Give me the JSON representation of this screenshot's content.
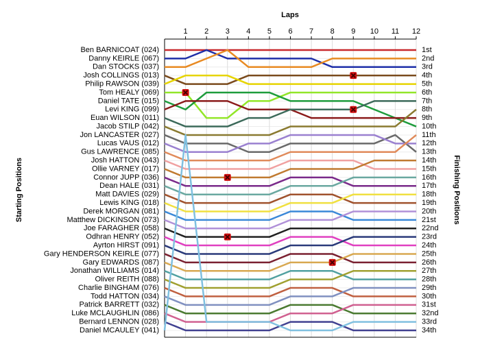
{
  "chart_data": {
    "type": "lap",
    "title": "Laps",
    "y_label": "Starting Positions",
    "y2_label": "Finishing Positions",
    "x": [
      0,
      1,
      2,
      3,
      4,
      5,
      6,
      7,
      8,
      9,
      10,
      11,
      12
    ],
    "xlim": [
      0,
      12
    ],
    "xticks": [
      1,
      2,
      3,
      4,
      5,
      6,
      7,
      8,
      9,
      10,
      11,
      12
    ],
    "ylim": [
      1,
      34
    ],
    "yticks": [
      {
        "value": 1,
        "label": "1st"
      },
      {
        "value": 2,
        "label": "2nd"
      },
      {
        "value": 3,
        "label": "3rd"
      },
      {
        "value": 4,
        "label": "4th"
      },
      {
        "value": 5,
        "label": "5th"
      },
      {
        "value": 6,
        "label": "6th"
      },
      {
        "value": 7,
        "label": "7th"
      },
      {
        "value": 8,
        "label": "8th"
      },
      {
        "value": 9,
        "label": "9th"
      },
      {
        "value": 10,
        "label": "10th"
      },
      {
        "value": 11,
        "label": "11th"
      },
      {
        "value": 12,
        "label": "12th"
      },
      {
        "value": 13,
        "label": "13th"
      },
      {
        "value": 14,
        "label": "14th"
      },
      {
        "value": 15,
        "label": "15th"
      },
      {
        "value": 16,
        "label": "16th"
      },
      {
        "value": 17,
        "label": "17th"
      },
      {
        "value": 18,
        "label": "18th"
      },
      {
        "value": 19,
        "label": "19th"
      },
      {
        "value": 20,
        "label": "20th"
      },
      {
        "value": 21,
        "label": "21st"
      },
      {
        "value": 22,
        "label": "22nd"
      },
      {
        "value": 23,
        "label": "23rd"
      },
      {
        "value": 24,
        "label": "24th"
      },
      {
        "value": 25,
        "label": "25th"
      },
      {
        "value": 26,
        "label": "26th"
      },
      {
        "value": 27,
        "label": "27th"
      },
      {
        "value": 28,
        "label": "28th"
      },
      {
        "value": 29,
        "label": "29th"
      },
      {
        "value": 30,
        "label": "30th"
      },
      {
        "value": 31,
        "label": "31st"
      },
      {
        "value": 32,
        "label": "32nd"
      },
      {
        "value": 33,
        "label": "33rd"
      },
      {
        "value": 34,
        "label": "34th"
      }
    ],
    "grid": true,
    "series": [
      {
        "name": "Ben BARNICOAT (024)",
        "color": "#c8282d",
        "values": [
          1,
          1,
          1,
          1,
          1,
          1,
          1,
          1,
          1,
          1,
          1,
          1,
          1
        ]
      },
      {
        "name": "Danny KEIRLE (067)",
        "color": "#1e2fa8",
        "values": [
          2,
          2,
          1,
          2,
          2,
          2,
          2,
          2,
          3,
          3,
          3,
          3,
          3
        ]
      },
      {
        "name": "Dan STOCKS (037)",
        "color": "#e88a22",
        "values": [
          3,
          3,
          2,
          1,
          3,
          3,
          3,
          3,
          2,
          2,
          2,
          2,
          2
        ]
      },
      {
        "name": "Josh COLLINGS (013)",
        "color": "#7a4a1c",
        "values": [
          4,
          5,
          5,
          5,
          4,
          4,
          4,
          4,
          4,
          4,
          4,
          4,
          4
        ]
      },
      {
        "name": "Philip RAWSON (039)",
        "color": "#e6d400",
        "values": [
          5,
          4,
          4,
          4,
          5,
          5,
          5,
          5,
          5,
          5,
          5,
          5,
          5
        ]
      },
      {
        "name": "Tom HEALY (069)",
        "color": "#92e628",
        "values": [
          6,
          6,
          9,
          9,
          7,
          7,
          6,
          6,
          6,
          6,
          6,
          6,
          6
        ]
      },
      {
        "name": "Daniel TATE (015)",
        "color": "#1e9c3c",
        "values": [
          7,
          8,
          6,
          6,
          6,
          6,
          7,
          7,
          7,
          7,
          8,
          9,
          10
        ]
      },
      {
        "name": "Levi KING (099)",
        "color": "#8a1a1a",
        "values": [
          8,
          7,
          7,
          7,
          8,
          8,
          8,
          9,
          9,
          9,
          9,
          9,
          9
        ]
      },
      {
        "name": "Euan WILSON (011)",
        "color": "#3c6a5a",
        "values": [
          9,
          10,
          10,
          10,
          9,
          9,
          8,
          8,
          8,
          8,
          7,
          7,
          7
        ]
      },
      {
        "name": "Jacob STILP (042)",
        "color": "#8a7a30",
        "values": [
          10,
          11,
          11,
          11,
          11,
          11,
          10,
          10,
          10,
          10,
          10,
          10,
          8
        ]
      },
      {
        "name": "Jon LANCASTER (027)",
        "color": "#6a6a6a",
        "values": [
          11,
          12,
          12,
          12,
          13,
          13,
          12,
          12,
          12,
          12,
          12,
          11,
          13
        ]
      },
      {
        "name": "Lucas VAUS (012)",
        "color": "#9a80d0",
        "values": [
          12,
          13,
          13,
          13,
          12,
          12,
          11,
          11,
          11,
          11,
          11,
          12,
          12
        ]
      },
      {
        "name": "Gus LAWRENCE (085)",
        "color": "#e08a5a",
        "values": [
          13,
          14,
          14,
          14,
          14,
          14,
          13,
          13,
          13,
          13,
          13,
          13,
          11
        ]
      },
      {
        "name": "Josh HATTON (043)",
        "color": "#f0a0a0",
        "values": [
          14,
          15,
          15,
          15,
          15,
          15,
          14,
          14,
          14,
          14,
          15,
          15,
          15
        ]
      },
      {
        "name": "Ollie VARNEY (017)",
        "color": "#c07a30",
        "values": [
          15,
          16,
          16,
          16,
          16,
          16,
          15,
          15,
          15,
          15,
          14,
          14,
          14
        ]
      },
      {
        "name": "Connor JUPP (036)",
        "color": "#7a2a8a",
        "values": [
          16,
          17,
          17,
          17,
          17,
          17,
          16,
          16,
          16,
          17,
          17,
          17,
          17
        ]
      },
      {
        "name": "Dean HALE (031)",
        "color": "#6aa8a0",
        "values": [
          17,
          18,
          18,
          18,
          18,
          18,
          17,
          17,
          17,
          16,
          16,
          16,
          16
        ]
      },
      {
        "name": "Matt DAVIES (029)",
        "color": "#a0522d",
        "values": [
          18,
          19,
          19,
          19,
          19,
          19,
          18,
          18,
          18,
          19,
          19,
          19,
          19
        ]
      },
      {
        "name": "Lewis KING (018)",
        "color": "#f0e040",
        "values": [
          19,
          20,
          20,
          20,
          20,
          20,
          19,
          19,
          19,
          18,
          18,
          18,
          18
        ]
      },
      {
        "name": "Derek MORGAN (081)",
        "color": "#3a88d8",
        "values": [
          20,
          21,
          21,
          21,
          21,
          21,
          20,
          20,
          20,
          21,
          21,
          21,
          21
        ]
      },
      {
        "name": "Matthew DICKINSON (073)",
        "color": "#b090d8",
        "values": [
          21,
          22,
          22,
          22,
          22,
          22,
          21,
          21,
          21,
          20,
          20,
          20,
          20
        ]
      },
      {
        "name": "Joe FARAGHER (058)",
        "color": "#202020",
        "values": [
          22,
          23,
          23,
          23,
          23,
          23,
          22,
          22,
          22,
          22,
          22,
          22,
          22
        ]
      },
      {
        "name": "Odhran HENRY (052)",
        "color": "#e040c0",
        "values": [
          23,
          24,
          24,
          24,
          24,
          24,
          23,
          23,
          23,
          24,
          24,
          24,
          24
        ]
      },
      {
        "name": "Ayrton HIRST (091)",
        "color": "#2a3a7a",
        "values": [
          24,
          25,
          25,
          25,
          25,
          25,
          24,
          24,
          24,
          23,
          23,
          23,
          23
        ]
      },
      {
        "name": "Gary HENDERSON KEIRLE (077)",
        "color": "#7a2030",
        "values": [
          25,
          26,
          26,
          26,
          26,
          26,
          25,
          25,
          25,
          26,
          26,
          26,
          26
        ]
      },
      {
        "name": "Gary EDWARDS (087)",
        "color": "#d8a850",
        "values": [
          26,
          27,
          27,
          27,
          27,
          27,
          26,
          26,
          26,
          25,
          25,
          25,
          25
        ]
      },
      {
        "name": "Jonathan WILLIAMS (014)",
        "color": "#50a0a0",
        "values": [
          27,
          28,
          28,
          28,
          28,
          28,
          27,
          27,
          27,
          28,
          28,
          28,
          28
        ]
      },
      {
        "name": "Oliver REITH (088)",
        "color": "#a0a030",
        "values": [
          28,
          29,
          29,
          29,
          29,
          29,
          28,
          28,
          28,
          27,
          27,
          27,
          27
        ]
      },
      {
        "name": "Charlie BINGHAM (076)",
        "color": "#c06040",
        "values": [
          29,
          30,
          30,
          30,
          30,
          30,
          29,
          29,
          29,
          30,
          30,
          30,
          30
        ]
      },
      {
        "name": "Todd HATTON (034)",
        "color": "#8090c0",
        "values": [
          30,
          31,
          31,
          31,
          31,
          31,
          30,
          30,
          30,
          29,
          29,
          29,
          29
        ]
      },
      {
        "name": "Patrick BARRETT (032)",
        "color": "#4a7a30",
        "values": [
          31,
          32,
          32,
          32,
          32,
          32,
          31,
          31,
          31,
          32,
          32,
          32,
          32
        ]
      },
      {
        "name": "Luke MCLAUGHLIN (086)",
        "color": "#d06090",
        "values": [
          32,
          33,
          33,
          33,
          33,
          33,
          32,
          32,
          32,
          31,
          31,
          31,
          31
        ]
      },
      {
        "name": "Bernard LENNON (028)",
        "color": "#404090",
        "values": [
          33,
          34,
          34,
          34,
          34,
          34,
          33,
          33,
          33,
          34,
          34,
          34,
          34
        ]
      },
      {
        "name": "Daniel MCAULEY (041)",
        "color": "#80c0e0",
        "values": [
          34,
          11,
          33,
          33,
          33,
          33,
          34,
          34,
          34,
          33,
          33,
          33,
          33
        ]
      }
    ],
    "markers": [
      {
        "lap": 1,
        "position": 6
      },
      {
        "lap": 9,
        "position": 4
      },
      {
        "lap": 9,
        "position": 8
      },
      {
        "lap": 3,
        "position": 16
      },
      {
        "lap": 3,
        "position": 23
      },
      {
        "lap": 8,
        "position": 26
      }
    ]
  }
}
